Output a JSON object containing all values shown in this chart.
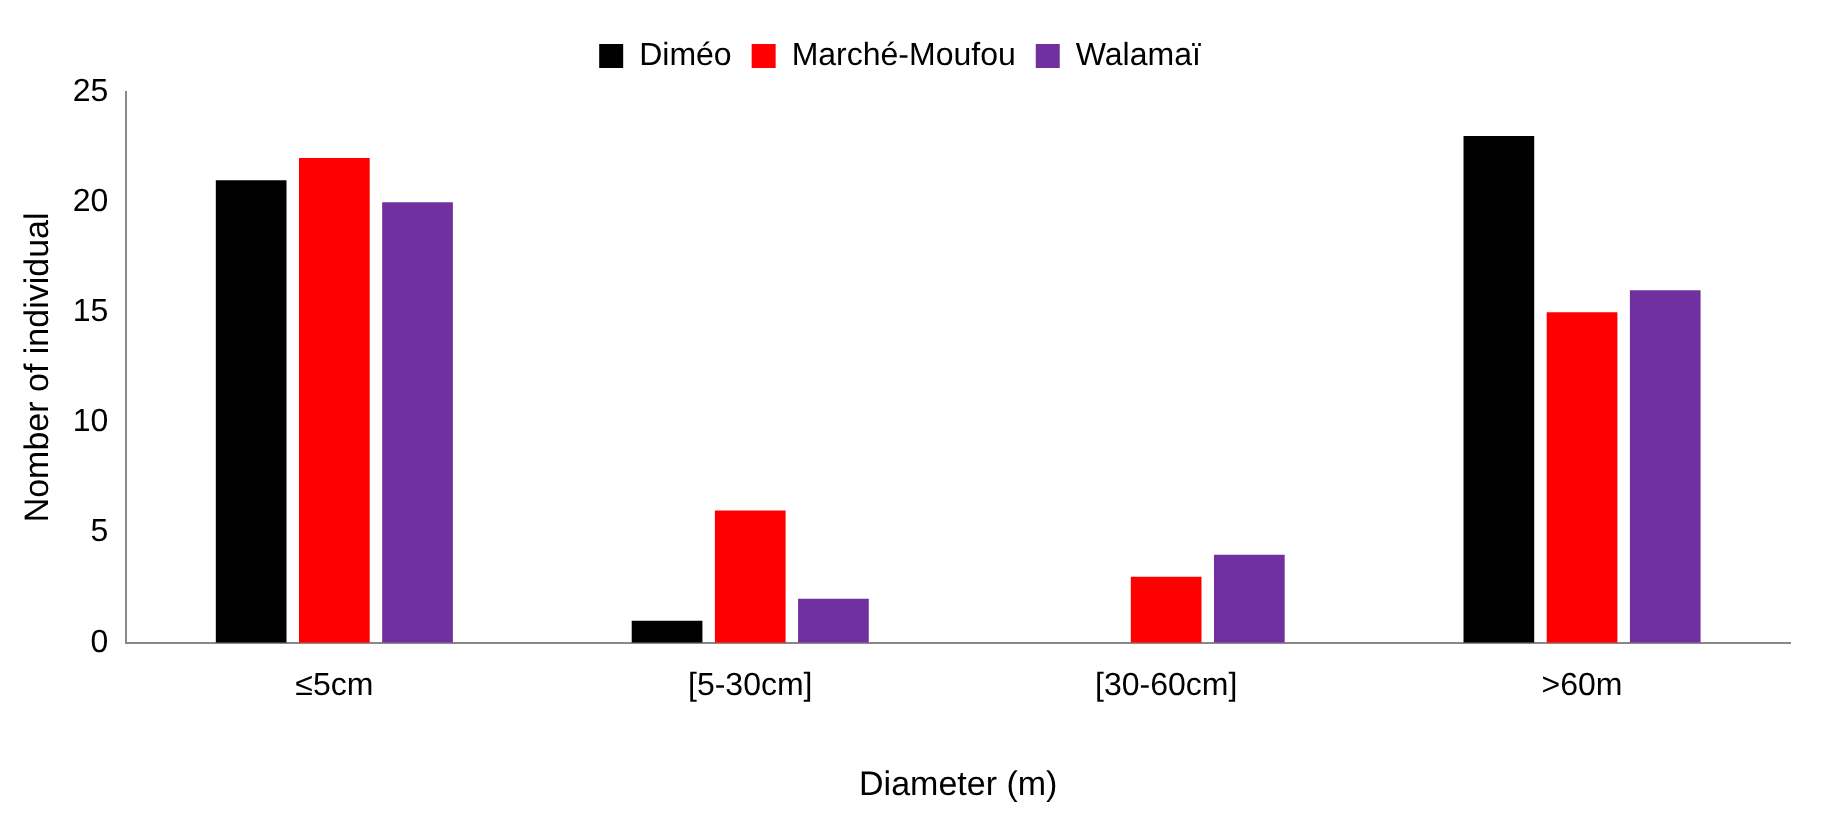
{
  "chart_data": {
    "type": "bar",
    "xlabel": "Diameter (m)",
    "ylabel": "Nomber of individual",
    "categories": [
      "≤5cm",
      "[5-30cm]",
      "[30-60cm]",
      ">60m"
    ],
    "series": [
      {
        "name": "Diméo",
        "color": "#000000",
        "values": [
          21,
          1,
          0,
          23
        ]
      },
      {
        "name": "Marché-Moufou",
        "color": "#ff0000",
        "values": [
          22,
          6,
          3,
          15
        ]
      },
      {
        "name": "Walamaï",
        "color": "#7030a0",
        "values": [
          20,
          2,
          4,
          16
        ]
      }
    ],
    "ylim": [
      0,
      25
    ],
    "yticks": [
      0,
      5,
      10,
      15,
      20,
      25
    ],
    "grid": false,
    "legend": "top"
  }
}
